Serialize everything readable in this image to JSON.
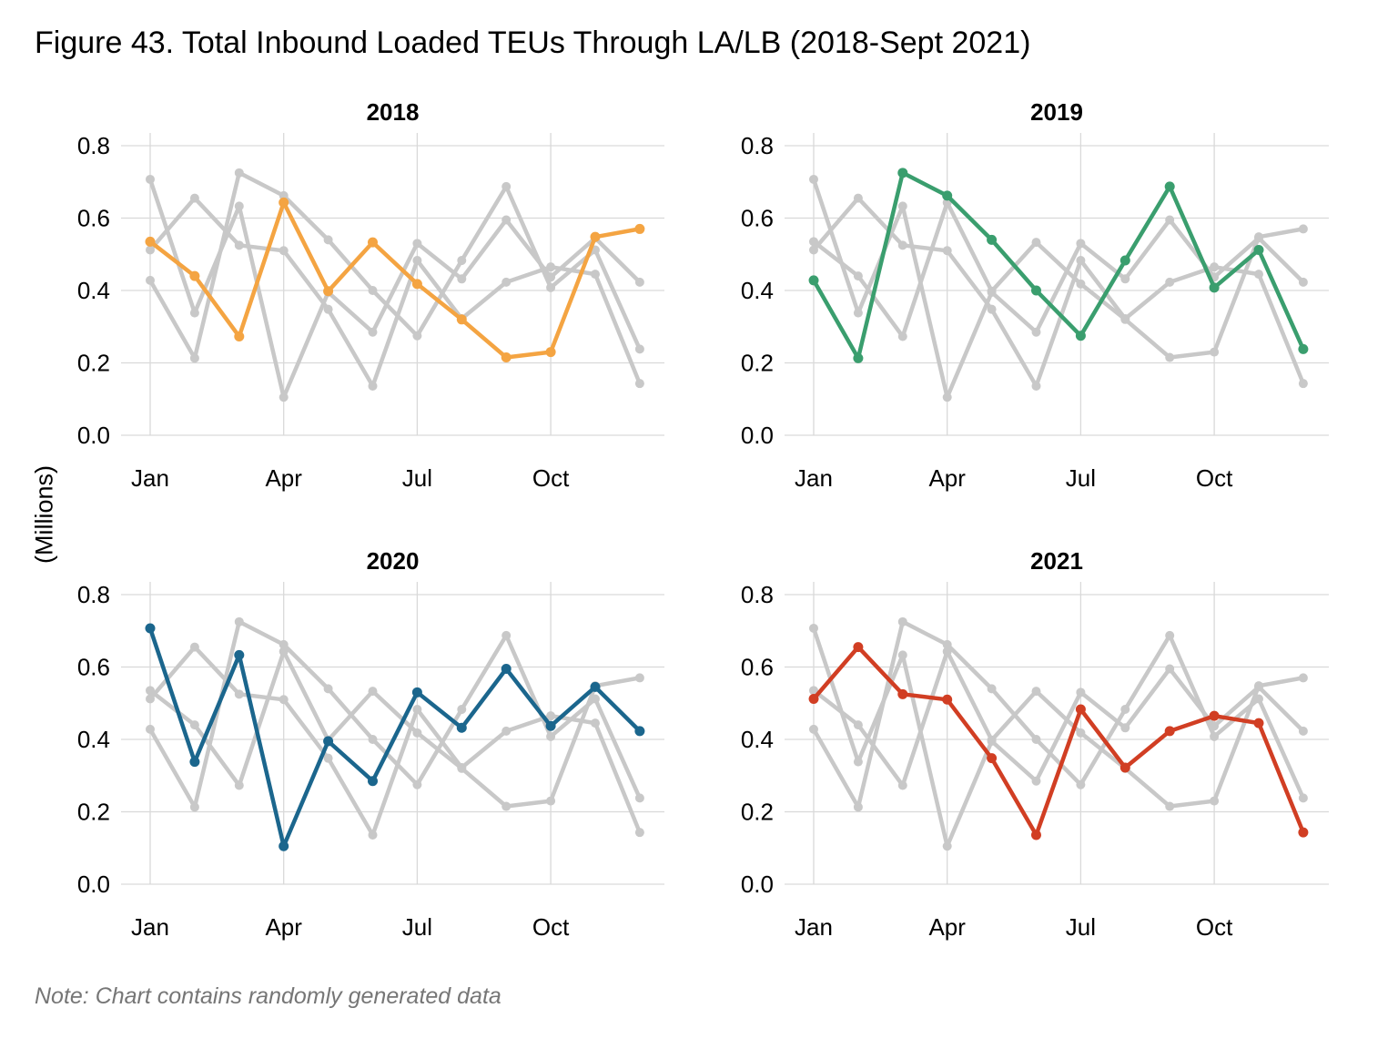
{
  "title": "Figure 43. Total Inbound Loaded TEUs Through LA/LB (2018-Sept 2021)",
  "ylabel": "(Millions)",
  "note": "Note: Chart contains randomly generated data",
  "chart_data": {
    "type": "line",
    "facet": "small-multiples-2x2",
    "months": [
      1,
      2,
      3,
      4,
      5,
      6,
      7,
      8,
      9,
      10,
      11,
      12
    ],
    "x_ticks": [
      {
        "month": 1,
        "label": "Jan"
      },
      {
        "month": 4,
        "label": "Apr"
      },
      {
        "month": 7,
        "label": "Jul"
      },
      {
        "month": 10,
        "label": "Oct"
      }
    ],
    "y_ticks": [
      0.0,
      0.2,
      0.4,
      0.6,
      0.8
    ],
    "y_tick_labels": [
      "0.0",
      "0.2",
      "0.4",
      "0.6",
      "0.8"
    ],
    "ylim": [
      0,
      0.8
    ],
    "grid": true,
    "background_series_color": "#c8c8c8",
    "series": [
      {
        "name": "2018",
        "color": "#f4a442",
        "values": [
          0.535,
          0.44,
          0.273,
          0.643,
          0.398,
          0.533,
          0.418,
          0.32,
          0.215,
          0.23,
          0.548,
          0.57
        ]
      },
      {
        "name": "2019",
        "color": "#3a9e6e",
        "values": [
          0.428,
          0.213,
          0.725,
          0.662,
          0.54,
          0.4,
          0.275,
          0.483,
          0.687,
          0.408,
          0.512,
          0.238
        ]
      },
      {
        "name": "2020",
        "color": "#1b668d",
        "values": [
          0.707,
          0.338,
          0.633,
          0.105,
          0.395,
          0.285,
          0.53,
          0.432,
          0.595,
          0.437,
          0.545,
          0.423
        ]
      },
      {
        "name": "2021",
        "color": "#d13e23",
        "values": [
          0.512,
          0.655,
          0.525,
          0.51,
          0.348,
          0.136,
          0.483,
          0.322,
          0.423,
          0.465,
          0.445,
          0.143
        ]
      }
    ]
  }
}
